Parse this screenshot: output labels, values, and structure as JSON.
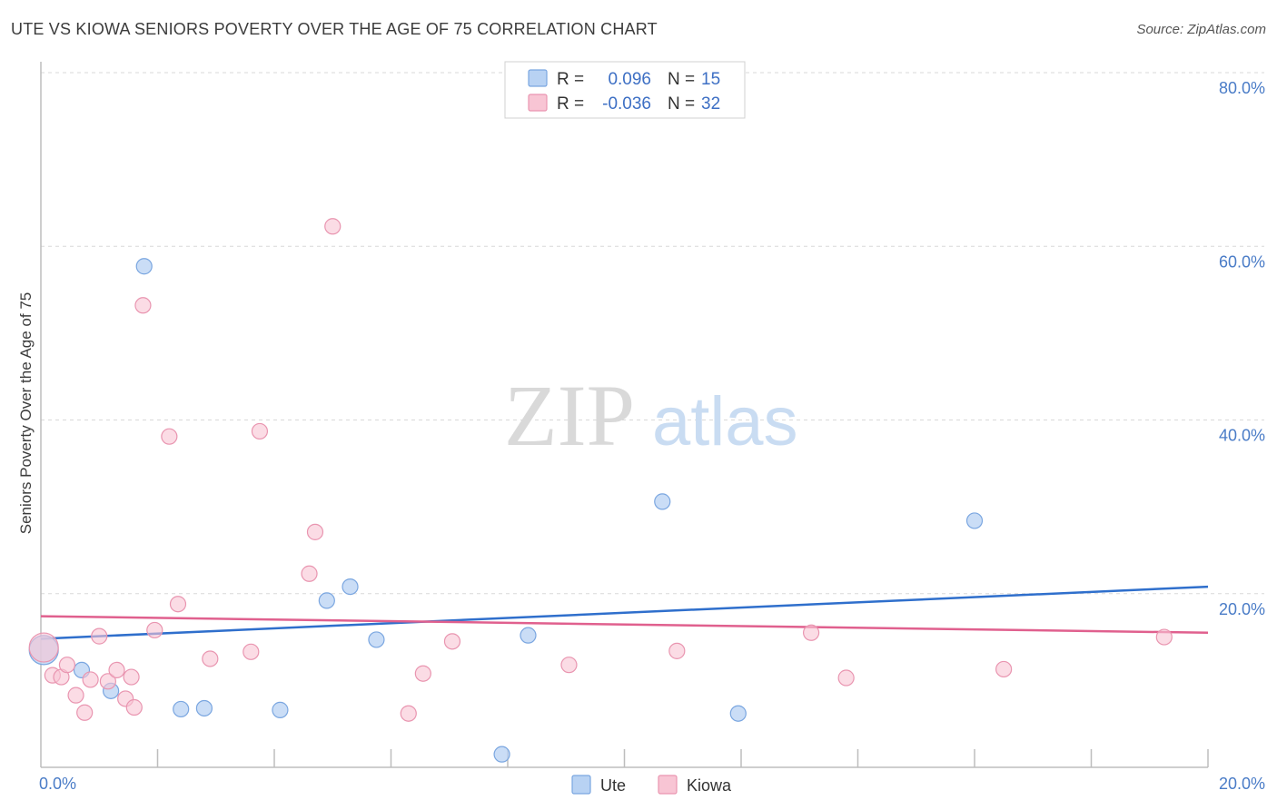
{
  "title": "UTE VS KIOWA SENIORS POVERTY OVER THE AGE OF 75 CORRELATION CHART",
  "source": "Source: ZipAtlas.com",
  "watermark": {
    "zip": "ZIP",
    "atlas": "atlas"
  },
  "colors": {
    "ute_fill": "#b8d2f3",
    "ute_stroke": "#7aa6e0",
    "ute_line": "#2f6fcc",
    "kiowa_fill": "#f8c5d4",
    "kiowa_stroke": "#e995b0",
    "kiowa_line": "#e0608e",
    "grid": "#d8d8d8",
    "axis_text": "#4a7cc7"
  },
  "legend": {
    "rows": [
      {
        "series": "Ute",
        "r_label": "R = ",
        "r_value": "0.096",
        "n_label": "N = ",
        "n_value": "15"
      },
      {
        "series": "Kiowa",
        "r_label": "R = ",
        "r_value": "-0.036",
        "n_label": "N = ",
        "n_value": "32"
      }
    ]
  },
  "chart_data": {
    "type": "scatter",
    "title": "UTE VS KIOWA SENIORS POVERTY OVER THE AGE OF 75 CORRELATION CHART",
    "xlabel": "",
    "ylabel": "Seniors Poverty Over the Age of 75",
    "xlim": [
      0,
      20
    ],
    "ylim": [
      0,
      80
    ],
    "x_tick_labels": [
      "0.0%",
      "20.0%"
    ],
    "y_ticks": [
      20,
      40,
      60,
      80
    ],
    "y_tick_labels": [
      "20.0%",
      "40.0%",
      "60.0%",
      "80.0%"
    ],
    "grid": true,
    "legend_entries": [
      "Ute",
      "Kiowa"
    ],
    "series": [
      {
        "name": "Ute",
        "r": 0.096,
        "n": 15,
        "trend": {
          "x": [
            0,
            20
          ],
          "y": [
            14.8,
            20.8
          ]
        },
        "points": [
          {
            "x": 0.05,
            "y": 13.5,
            "big": true
          },
          {
            "x": 0.7,
            "y": 11.2
          },
          {
            "x": 1.2,
            "y": 8.8
          },
          {
            "x": 1.77,
            "y": 57.7
          },
          {
            "x": 2.4,
            "y": 6.7
          },
          {
            "x": 2.8,
            "y": 6.8
          },
          {
            "x": 4.1,
            "y": 6.6
          },
          {
            "x": 4.9,
            "y": 19.2
          },
          {
            "x": 5.3,
            "y": 20.8
          },
          {
            "x": 5.75,
            "y": 14.7
          },
          {
            "x": 7.9,
            "y": 1.5
          },
          {
            "x": 8.35,
            "y": 15.2
          },
          {
            "x": 10.65,
            "y": 30.6
          },
          {
            "x": 11.95,
            "y": 6.2
          },
          {
            "x": 16.0,
            "y": 28.4
          }
        ]
      },
      {
        "name": "Kiowa",
        "r": -0.036,
        "n": 32,
        "trend": {
          "x": [
            0,
            20
          ],
          "y": [
            17.4,
            15.5
          ]
        },
        "points": [
          {
            "x": 0.05,
            "y": 13.8,
            "big": true
          },
          {
            "x": 0.2,
            "y": 10.6
          },
          {
            "x": 0.35,
            "y": 10.4
          },
          {
            "x": 0.45,
            "y": 11.8
          },
          {
            "x": 0.6,
            "y": 8.3
          },
          {
            "x": 0.75,
            "y": 6.3
          },
          {
            "x": 0.85,
            "y": 10.1
          },
          {
            "x": 1.0,
            "y": 15.1
          },
          {
            "x": 1.15,
            "y": 9.9
          },
          {
            "x": 1.3,
            "y": 11.2
          },
          {
            "x": 1.45,
            "y": 7.9
          },
          {
            "x": 1.55,
            "y": 10.4
          },
          {
            "x": 1.6,
            "y": 6.9
          },
          {
            "x": 1.75,
            "y": 53.2
          },
          {
            "x": 1.95,
            "y": 15.8
          },
          {
            "x": 2.2,
            "y": 38.1
          },
          {
            "x": 2.35,
            "y": 18.8
          },
          {
            "x": 2.9,
            "y": 12.5
          },
          {
            "x": 3.6,
            "y": 13.3
          },
          {
            "x": 3.75,
            "y": 38.7
          },
          {
            "x": 4.6,
            "y": 22.3
          },
          {
            "x": 4.7,
            "y": 27.1
          },
          {
            "x": 5.0,
            "y": 62.3
          },
          {
            "x": 6.3,
            "y": 6.2
          },
          {
            "x": 6.55,
            "y": 10.8
          },
          {
            "x": 7.05,
            "y": 14.5
          },
          {
            "x": 9.05,
            "y": 11.8
          },
          {
            "x": 10.9,
            "y": 13.4
          },
          {
            "x": 13.2,
            "y": 15.5
          },
          {
            "x": 13.8,
            "y": 10.3
          },
          {
            "x": 16.5,
            "y": 11.3
          },
          {
            "x": 19.25,
            "y": 15.0
          }
        ]
      }
    ]
  }
}
